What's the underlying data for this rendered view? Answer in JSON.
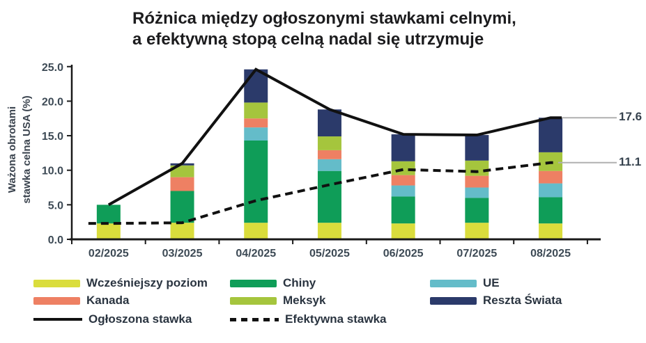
{
  "title": {
    "line1": "Różnica między ogłoszonymi stawkami celnymi,",
    "line2": "a efektywną stopą celną nadal się utrzymuje"
  },
  "y_axis": {
    "label_line1": "Ważona obrotami",
    "label_line2": "stawka celna USA (%)"
  },
  "annotations": [
    {
      "label": "17.6",
      "value": 17.6
    },
    {
      "label": "11.1",
      "value": 11.1
    }
  ],
  "legend": {
    "items": [
      {
        "label": "Wcześniejszy poziom",
        "type": "box",
        "color": "#dadd3c"
      },
      {
        "label": "Chiny",
        "type": "box",
        "color": "#0f9d58"
      },
      {
        "label": "UE",
        "type": "box",
        "color": "#64bcc9"
      },
      {
        "label": "Kanada",
        "type": "box",
        "color": "#ee8063"
      },
      {
        "label": "Meksyk",
        "type": "box",
        "color": "#a5c53d"
      },
      {
        "label": "Reszta Świata",
        "type": "box",
        "color": "#2b3a6a"
      },
      {
        "label": "Ogłoszona stawka",
        "type": "solid-line",
        "color": "#111111"
      },
      {
        "label": "Efektywna stawka",
        "type": "dashed-line",
        "color": "#111111"
      }
    ]
  },
  "chart_data": {
    "type": "bar",
    "subtype": "stacked bars with two overlay line series",
    "title": "Różnica między ogłoszonymi stawkami celnymi, a efektywną stopą celną nadal się utrzymuje",
    "xlabel": "",
    "ylabel": "Ważona obrotami stawka celna USA (%)",
    "ylim": [
      0,
      25
    ],
    "y_ticks": [
      0,
      5,
      10,
      15,
      20,
      25
    ],
    "grid": false,
    "legend_position": "bottom",
    "categories": [
      "02/2025",
      "03/2025",
      "04/2025",
      "05/2025",
      "06/2025",
      "07/2025",
      "08/2025"
    ],
    "stack_series": [
      {
        "name": "Wcześniejszy poziom",
        "color": "#dadd3c",
        "values": [
          2.3,
          2.4,
          2.4,
          2.4,
          2.3,
          2.4,
          2.3
        ]
      },
      {
        "name": "Chiny",
        "color": "#0f9d58",
        "values": [
          2.7,
          4.6,
          11.9,
          7.5,
          3.9,
          3.6,
          3.8
        ]
      },
      {
        "name": "UE",
        "color": "#64bcc9",
        "values": [
          0,
          0,
          1.9,
          1.7,
          1.6,
          1.5,
          2.0
        ]
      },
      {
        "name": "Kanada",
        "color": "#ee8063",
        "values": [
          0,
          2.0,
          1.3,
          1.3,
          1.5,
          1.7,
          1.8
        ]
      },
      {
        "name": "Meksyk",
        "color": "#a5c53d",
        "values": [
          0,
          1.7,
          2.3,
          2.0,
          2.0,
          2.2,
          2.7
        ]
      },
      {
        "name": "Reszta Świata",
        "color": "#2b3a6a",
        "values": [
          0,
          0.3,
          4.8,
          3.9,
          3.9,
          3.7,
          5.0
        ]
      }
    ],
    "line_series": [
      {
        "name": "Ogłoszona stawka",
        "style": "solid",
        "color": "#111111",
        "values": [
          5.0,
          11.0,
          24.6,
          18.8,
          15.2,
          15.1,
          17.6
        ]
      },
      {
        "name": "Efektywna stawka",
        "style": "dashed",
        "color": "#111111",
        "values": [
          2.3,
          2.4,
          5.6,
          7.9,
          10.1,
          9.8,
          11.1
        ]
      }
    ],
    "annotations": [
      {
        "text": "17.6",
        "value": 17.6,
        "series": "Ogłoszona stawka",
        "x": "08/2025"
      },
      {
        "text": "11.1",
        "value": 11.1,
        "series": "Efektywna stawka",
        "x": "08/2025"
      }
    ],
    "axis_text_color": "#3d4a55",
    "leader_line_color": "#b0b0b0"
  }
}
